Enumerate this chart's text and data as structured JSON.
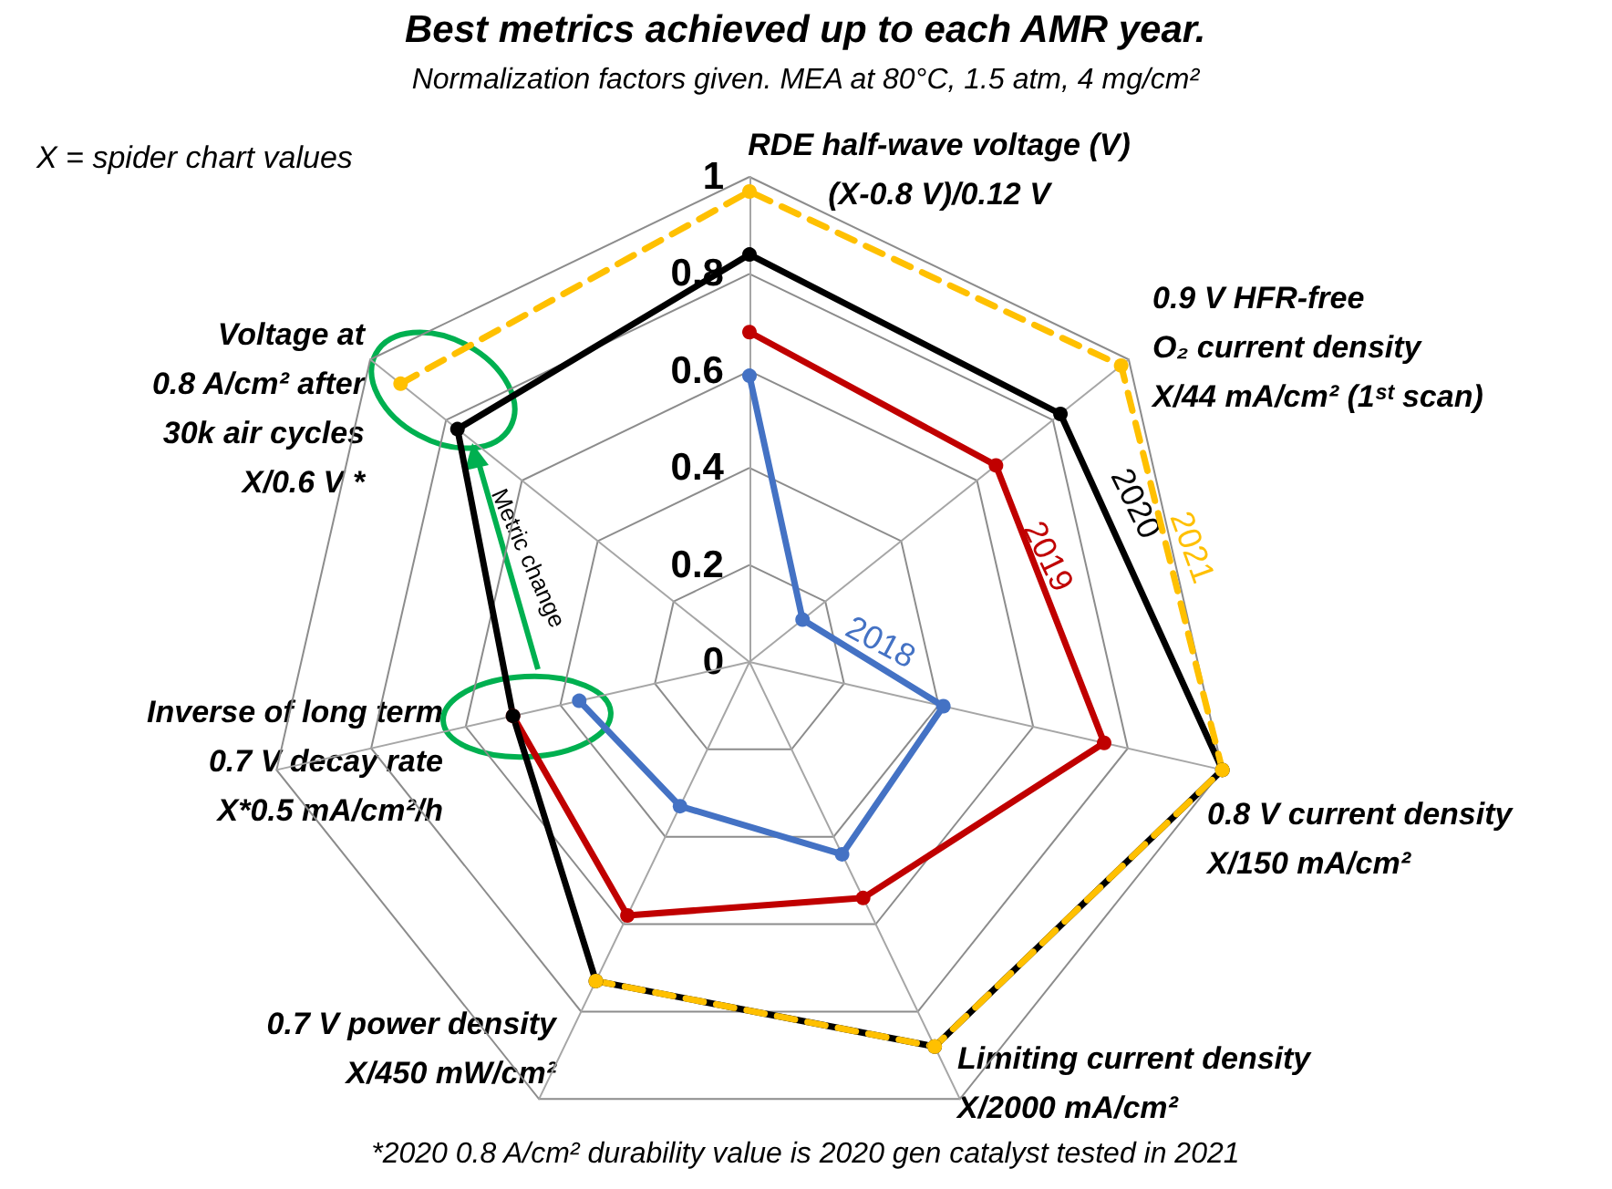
{
  "chart_data": {
    "type": "radar",
    "title": "Best metrics achieved up to each AMR year.",
    "subtitle": "Normalization factors given. MEA at 80°C, 1.5 atm, 4 mg/cm²",
    "categories": [
      "RDE half-wave voltage (V)\n(X-0.8 V)/0.12 V",
      "0.9 V HFR-free\nO₂ current density\nX/44 mA/cm² (1ˢᵗ scan)",
      "0.8 V current density\nX/150 mA/cm²",
      "Limiting current density\nX/2000 mA/cm²",
      "0.7 V power density\nX/450 mW/cm²",
      "Inverse of long term\n0.7 V decay rate\nX*0.5 mA/cm²/h",
      "Voltage at\n0.8 A/cm² after\n30k air cycles\nX/0.6 V *"
    ],
    "series": [
      {
        "name": "2018",
        "color": "#4472c4",
        "values": [
          0.59,
          0.14,
          0.41,
          0.44,
          0.33,
          0.36,
          null
        ]
      },
      {
        "name": "2019",
        "color": "#c00000",
        "values": [
          0.68,
          0.65,
          0.75,
          0.54,
          0.58,
          0.5,
          null
        ]
      },
      {
        "name": "2020",
        "color": "#000000",
        "values": [
          0.84,
          0.82,
          1.0,
          0.88,
          0.73,
          0.5,
          0.77
        ]
      },
      {
        "name": "2021",
        "color": "#ffc000",
        "line_style": "dashed",
        "values": [
          0.97,
          0.98,
          1.0,
          0.88,
          0.73,
          null,
          0.92
        ]
      }
    ],
    "ylim": [
      0,
      1
    ],
    "yticks": [
      0,
      0.2,
      0.4,
      0.6,
      0.8,
      1
    ],
    "marker": "circle",
    "legend": false,
    "annotations": [
      "X = spider chart values",
      "Metric change",
      "*2020 0.8 A/cm² durability value is 2020 gen catalyst tested in 2021"
    ]
  }
}
